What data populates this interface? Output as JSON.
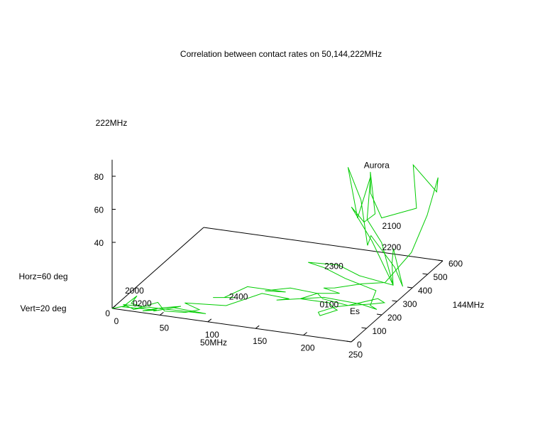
{
  "chart_data": {
    "type": "line",
    "title": "Correlation between contact rates on 50,144,222MHz",
    "xlabel": "50MHz",
    "ylabel": "144MHz",
    "zlabel": "222MHz",
    "view_text": [
      "Horz=60 deg",
      "Vert=20 deg"
    ],
    "xlim": [
      0,
      250
    ],
    "ylim": [
      0,
      600
    ],
    "zlim": [
      0,
      90
    ],
    "x_ticks": [
      0,
      50,
      100,
      150,
      200,
      250
    ],
    "y_ticks": [
      0,
      100,
      200,
      300,
      400,
      500,
      600
    ],
    "z_ticks": [
      40,
      60,
      80
    ],
    "z_tick_labels": [
      "40",
      "60",
      "80"
    ],
    "series_color": "#00cc00",
    "annotations": [
      {
        "text": "Aurora",
        "x": 200,
        "y": 480,
        "z": 62
      },
      {
        "text": "Es",
        "x": 225,
        "y": 180,
        "z": 0
      },
      {
        "text": "2000",
        "x": 5,
        "y": 115,
        "z": 0
      },
      {
        "text": "0200",
        "x": 25,
        "y": 40,
        "z": 0
      },
      {
        "text": "2400",
        "x": 105,
        "y": 170,
        "z": 0
      },
      {
        "text": "2300",
        "x": 160,
        "y": 450,
        "z": 0
      },
      {
        "text": "2100",
        "x": 230,
        "y": 390,
        "z": 35
      },
      {
        "text": "2200",
        "x": 230,
        "y": 390,
        "z": 22
      },
      {
        "text": "0100",
        "x": 195,
        "y": 200,
        "z": 0
      }
    ],
    "series": [
      {
        "points": [
          [
            0,
            0,
            0
          ],
          [
            10,
            30,
            0
          ],
          [
            20,
            15,
            0
          ],
          [
            6,
            35,
            0
          ],
          [
            25,
            40,
            0
          ],
          [
            12,
            50,
            0
          ],
          [
            18,
            50,
            5
          ],
          [
            8,
            20,
            0
          ],
          [
            42,
            30,
            0
          ],
          [
            30,
            12,
            0
          ],
          [
            45,
            50,
            0
          ],
          [
            60,
            75,
            0
          ],
          [
            40,
            20,
            0
          ],
          [
            55,
            60,
            0
          ],
          [
            90,
            50,
            0
          ],
          [
            30,
            40,
            0
          ],
          [
            20,
            12,
            0
          ],
          [
            35,
            80,
            0
          ],
          [
            50,
            30,
            0
          ],
          [
            70,
            40,
            0
          ],
          [
            80,
            70,
            0
          ],
          [
            60,
            100,
            0
          ],
          [
            100,
            120,
            0
          ],
          [
            120,
            230,
            0
          ],
          [
            150,
            220,
            0
          ],
          [
            140,
            200,
            0
          ],
          [
            180,
            260,
            0
          ],
          [
            220,
            250,
            0
          ],
          [
            240,
            230,
            0
          ],
          [
            230,
            250,
            0
          ],
          [
            220,
            350,
            0
          ],
          [
            180,
            400,
            0
          ],
          [
            150,
            450,
            0
          ],
          [
            130,
            470,
            0
          ],
          [
            160,
            480,
            0
          ],
          [
            190,
            430,
            0
          ],
          [
            230,
            400,
            0
          ],
          [
            232,
            380,
            15
          ],
          [
            235,
            370,
            25
          ],
          [
            240,
            400,
            0
          ],
          [
            230,
            410,
            10
          ],
          [
            210,
            380,
            30
          ],
          [
            200,
            420,
            20
          ],
          [
            190,
            440,
            45
          ],
          [
            170,
            480,
            60
          ],
          [
            180,
            480,
            30
          ],
          [
            200,
            440,
            60
          ],
          [
            190,
            480,
            30
          ],
          [
            210,
            450,
            20
          ],
          [
            230,
            400,
            0
          ],
          [
            200,
            450,
            20
          ],
          [
            180,
            440,
            40
          ],
          [
            190,
            460,
            30
          ],
          [
            200,
            470,
            35
          ],
          [
            195,
            470,
            60
          ],
          [
            200,
            440,
            50
          ],
          [
            210,
            450,
            35
          ],
          [
            240,
            490,
            40
          ],
          [
            235,
            500,
            65
          ],
          [
            250,
            560,
            45
          ],
          [
            245,
            600,
            50
          ],
          [
            240,
            560,
            30
          ],
          [
            230,
            520,
            10
          ],
          [
            220,
            410,
            0
          ],
          [
            200,
            380,
            0
          ],
          [
            180,
            330,
            0
          ],
          [
            170,
            320,
            0
          ],
          [
            190,
            300,
            0
          ],
          [
            170,
            280,
            0
          ],
          [
            160,
            230,
            0
          ],
          [
            190,
            230,
            0
          ],
          [
            200,
            200,
            0
          ],
          [
            205,
            190,
            0
          ],
          [
            195,
            140,
            0
          ],
          [
            190,
            160,
            0
          ],
          [
            200,
            210,
            0
          ],
          [
            210,
            230,
            0
          ],
          [
            230,
            260,
            0
          ],
          [
            240,
            280,
            0
          ],
          [
            230,
            300,
            0
          ],
          [
            210,
            230,
            0
          ],
          [
            180,
            250,
            0
          ],
          [
            170,
            280,
            0
          ],
          [
            140,
            290,
            0
          ],
          [
            120,
            250,
            0
          ],
          [
            140,
            260,
            0
          ],
          [
            100,
            260,
            0
          ],
          [
            90,
            170,
            0
          ],
          [
            80,
            160,
            0
          ],
          [
            100,
            180,
            0
          ],
          [
            85,
            165,
            0
          ]
        ]
      }
    ]
  }
}
